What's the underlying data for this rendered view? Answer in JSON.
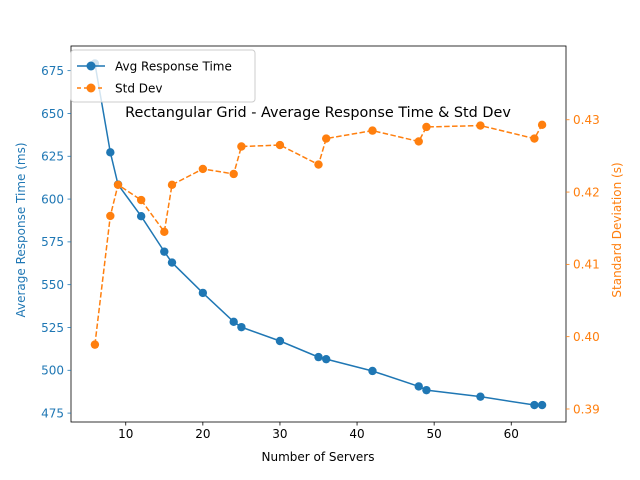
{
  "chart_data": {
    "type": "line",
    "title": "Rectangular Grid - Average Response Time & Std Dev",
    "xlabel": "Number of Servers",
    "ylabel_left": "Average Response Time (ms)",
    "ylabel_right": "Standard Deviation (s)",
    "xlim": [
      2.9,
      67.1
    ],
    "ylim_left": [
      469.8,
      689.4
    ],
    "ylim_right": [
      0.3882,
      0.4402
    ],
    "x_ticks": [
      10,
      20,
      30,
      40,
      50,
      60
    ],
    "x_tick_labels": [
      "10",
      "20",
      "30",
      "40",
      "50",
      "60"
    ],
    "y_left_ticks": [
      475,
      500,
      525,
      550,
      575,
      600,
      625,
      650,
      675
    ],
    "y_left_tick_labels": [
      "475",
      "500",
      "525",
      "550",
      "575",
      "600",
      "625",
      "650",
      "675"
    ],
    "y_right_ticks": [
      0.39,
      0.4,
      0.41,
      0.42,
      0.43
    ],
    "y_right_tick_labels": [
      "0.39",
      "0.40",
      "0.41",
      "0.42",
      "0.43"
    ],
    "legend_position": "top-left",
    "grid": false,
    "colors": {
      "left_axis": "#1f77b4",
      "right_axis": "#ff7f0e"
    },
    "x": [
      6,
      8,
      9,
      12,
      15,
      16,
      20,
      24,
      25,
      30,
      35,
      36,
      42,
      48,
      49,
      56,
      63,
      64
    ],
    "series": [
      {
        "name": "Avg Response Time",
        "axis": "left",
        "color": "#1f77b4",
        "line_style": "solid",
        "values": [
          679.2,
          627.3,
          608.5,
          590.0,
          569.3,
          562.9,
          545.2,
          528.3,
          525.2,
          517.1,
          507.7,
          506.5,
          499.6,
          490.6,
          488.4,
          484.6,
          479.7,
          479.7
        ]
      },
      {
        "name": "Std Dev",
        "axis": "right",
        "color": "#ff7f0e",
        "line_style": "dashed",
        "values": [
          0.3989,
          0.4167,
          0.421,
          0.4189,
          0.4145,
          0.421,
          0.4232,
          0.4225,
          0.4263,
          0.4265,
          0.4238,
          0.4274,
          0.4285,
          0.427,
          0.429,
          0.4292,
          0.4274,
          0.4293
        ]
      }
    ]
  }
}
